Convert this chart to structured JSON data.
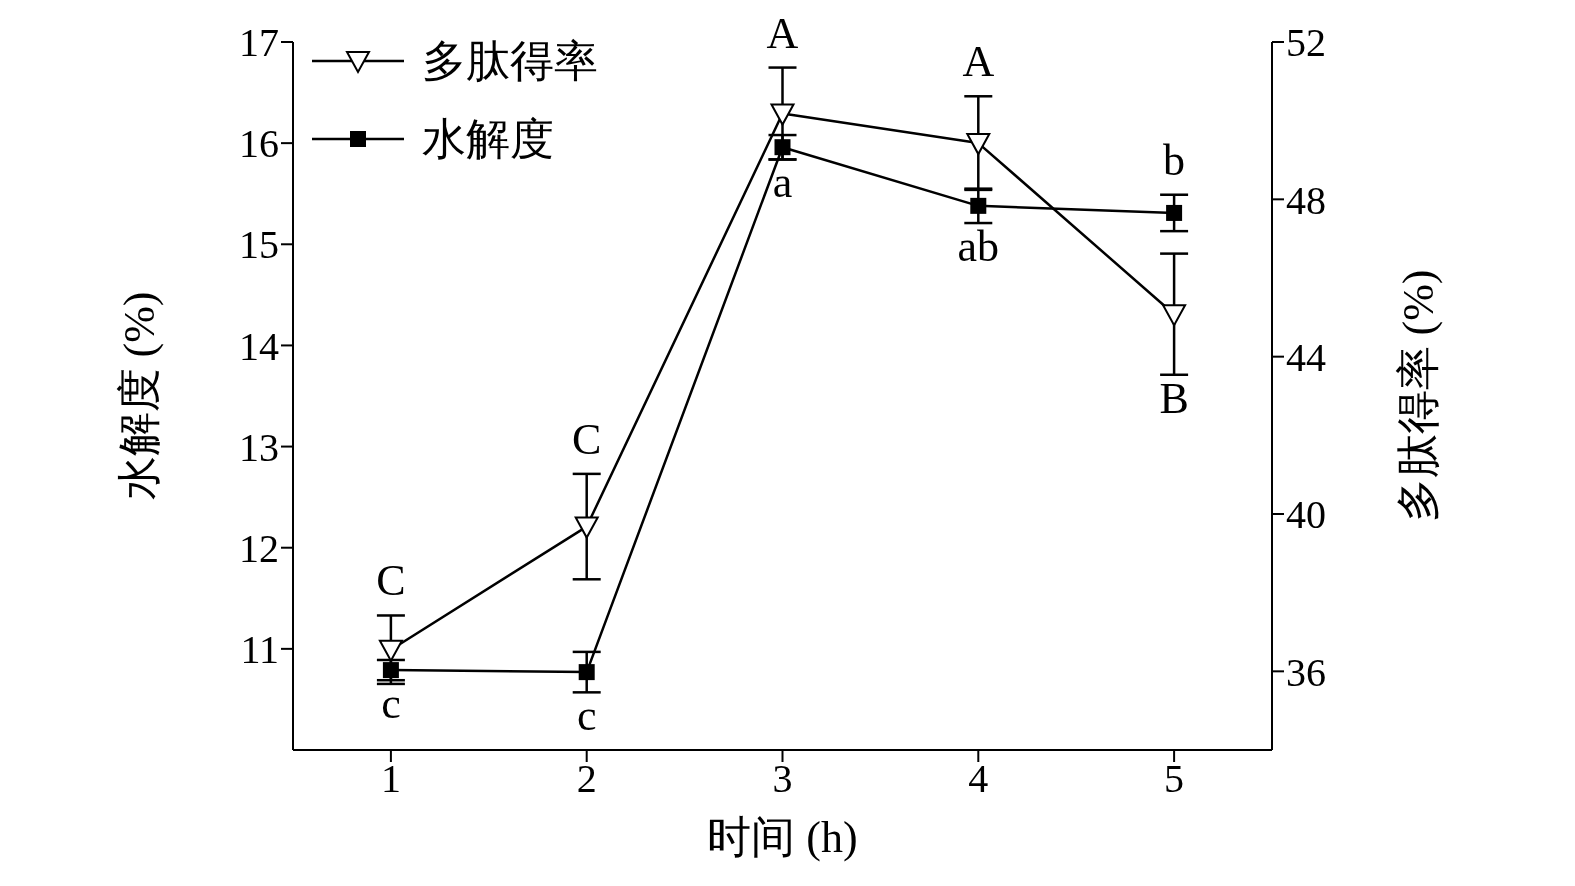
{
  "chart_data": {
    "type": "line",
    "xlabel": "时间 (h)",
    "ylabel": "水解度 (%)",
    "y2label": "多肽得率 (%)",
    "x": [
      1,
      2,
      3,
      4,
      5
    ],
    "xlim": [
      0.5,
      5.5
    ],
    "xticks": [
      1,
      2,
      3,
      4,
      5
    ],
    "ylim": [
      10,
      17
    ],
    "yticks": [
      11,
      12,
      13,
      14,
      15,
      16,
      17
    ],
    "y2lim": [
      34,
      52
    ],
    "y2ticks": [
      36,
      40,
      44,
      48,
      52
    ],
    "series": [
      {
        "name": "多肽得率",
        "color": "#000000",
        "axis": "y2",
        "marker": "triangle",
        "values": [
          36.55,
          39.68,
          50.18,
          49.43,
          45.08
        ],
        "errors": [
          0.87,
          1.34,
          1.17,
          1.19,
          1.54
        ],
        "value_labels": [
          "C",
          "C",
          "A",
          "A",
          "B"
        ]
      },
      {
        "name": "水解度",
        "color": "#000000",
        "marker": "square",
        "values": [
          10.79,
          10.77,
          15.96,
          15.38,
          15.31
        ],
        "errors": [
          0.1,
          0.2,
          0.12,
          0.17,
          0.18
        ],
        "value_labels": [
          "c",
          "c",
          "a",
          "ab",
          "b"
        ]
      }
    ],
    "legend": "top left",
    "grid": false,
    "line_style": "solid"
  }
}
